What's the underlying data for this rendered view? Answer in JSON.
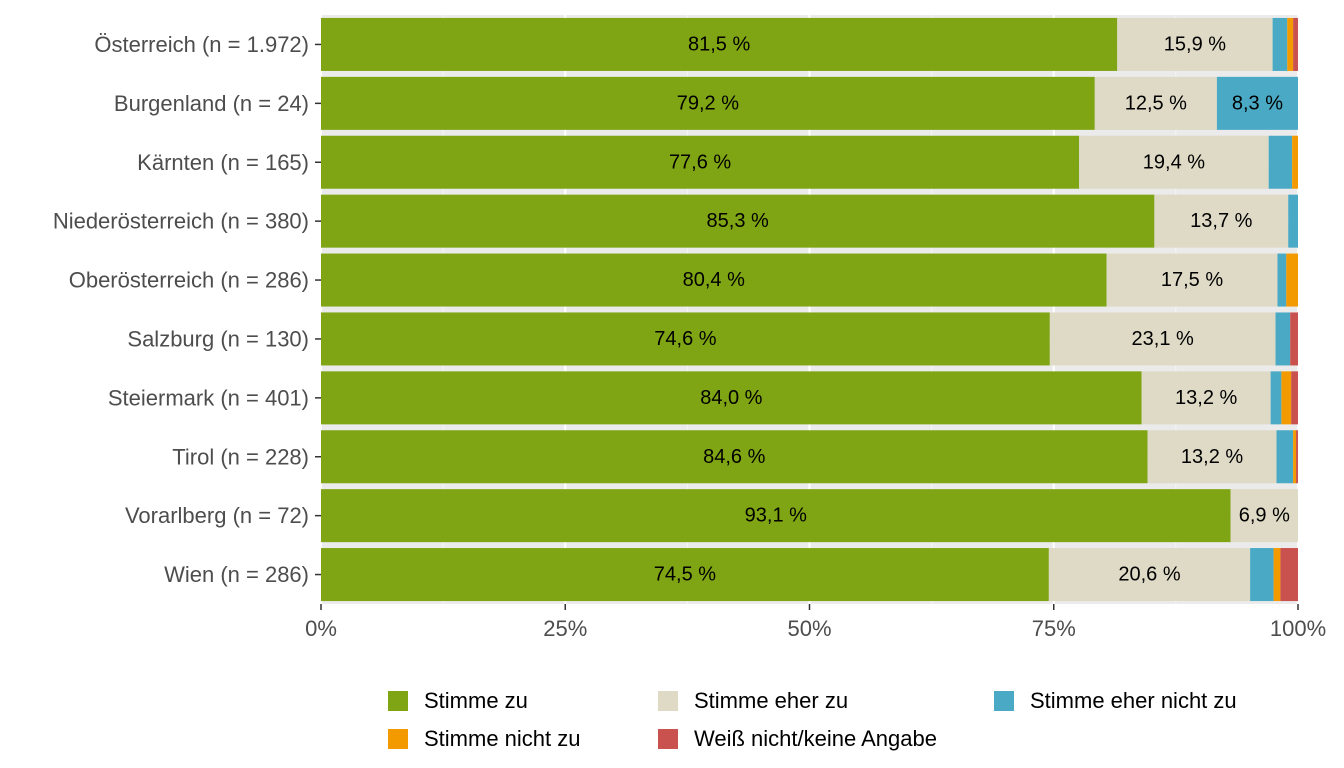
{
  "chart_data": {
    "type": "bar",
    "orientation": "horizontal",
    "stacked": true,
    "categories": [
      "Österreich (n = 1.972)",
      "Burgenland (n = 24)",
      "Kärnten (n = 165)",
      "Niederösterreich (n = 380)",
      "Oberösterreich (n = 286)",
      "Salzburg (n = 130)",
      "Steiermark (n = 401)",
      "Tirol (n = 228)",
      "Vorarlberg (n = 72)",
      "Wien (n = 286)"
    ],
    "series": [
      {
        "name": "Stimme zu",
        "color": "#7fa514",
        "values": [
          81.5,
          79.2,
          77.6,
          85.3,
          80.4,
          74.6,
          84.0,
          84.6,
          93.1,
          74.5
        ],
        "labels": [
          "81,5 %",
          "79,2 %",
          "77,6 %",
          "85,3 %",
          "80,4 %",
          "74,6 %",
          "84,0 %",
          "84,6 %",
          "93,1 %",
          "74,5 %"
        ]
      },
      {
        "name": "Stimme eher zu",
        "color": "#dedac6",
        "values": [
          15.9,
          12.5,
          19.4,
          13.7,
          17.5,
          23.1,
          13.2,
          13.2,
          6.9,
          20.6
        ],
        "labels": [
          "15,9 %",
          "12,5 %",
          "19,4 %",
          "13,7 %",
          "17,5 %",
          "23,1 %",
          "13,2 %",
          "13,2 %",
          "6,9 %",
          "20,6 %"
        ]
      },
      {
        "name": "Stimme eher nicht zu",
        "color": "#4aaac5",
        "values": [
          1.5,
          8.3,
          2.4,
          1.0,
          0.9,
          1.5,
          1.1,
          1.7,
          0.0,
          2.4
        ],
        "labels": [
          "",
          "8,3 %",
          "",
          "",
          "",
          "",
          "",
          "",
          "",
          ""
        ]
      },
      {
        "name": "Stimme nicht zu",
        "color": "#f39a00",
        "values": [
          0.6,
          0.0,
          0.6,
          0.0,
          1.2,
          0.0,
          1.0,
          0.3,
          0.0,
          0.7
        ],
        "labels": [
          "",
          "",
          "",
          "",
          "",
          "",
          "",
          "",
          "",
          ""
        ]
      },
      {
        "name": "Weiß nicht/keine Angabe",
        "color": "#c9524e",
        "values": [
          0.5,
          0.0,
          0.0,
          0.0,
          0.0,
          0.8,
          0.7,
          0.2,
          0.0,
          1.8
        ],
        "labels": [
          "",
          "",
          "",
          "",
          "",
          "",
          "",
          "",
          "",
          ""
        ]
      }
    ],
    "xlim": [
      0,
      100
    ],
    "x_ticks": [
      0,
      25,
      50,
      75,
      100
    ],
    "x_tick_labels": [
      "0%",
      "25%",
      "50%",
      "75%",
      "100%"
    ],
    "title": "",
    "xlabel": "",
    "ylabel": "",
    "grid": true,
    "legend_position": "bottom"
  }
}
